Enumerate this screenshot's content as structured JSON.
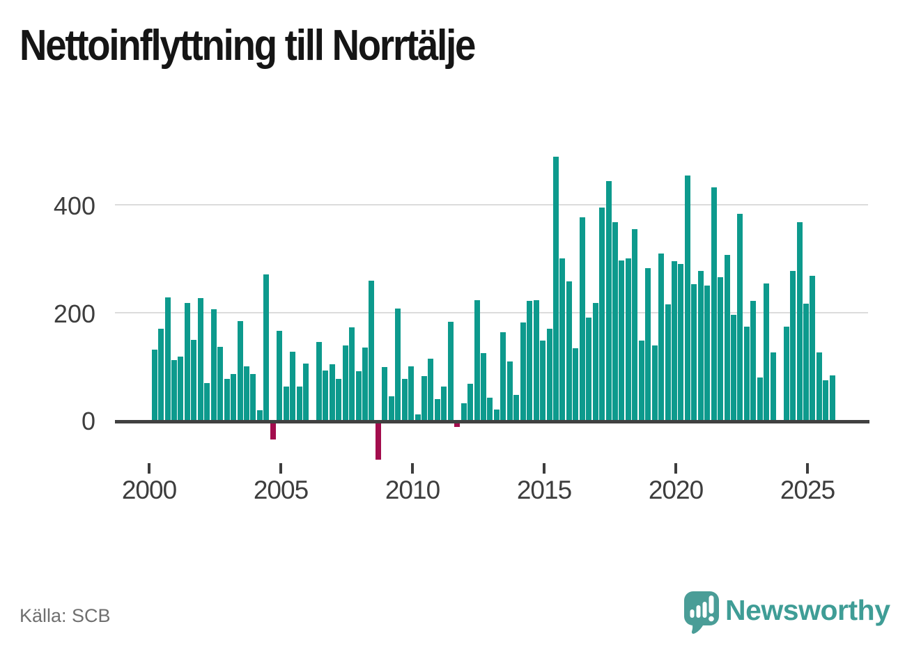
{
  "header": {
    "title": "Nettoinflyttning till Norrtälje"
  },
  "footer": {
    "source_label": "Källa: SCB",
    "brand": {
      "name": "Newsworthy",
      "logo_icon": "newsworthy-speech-bubble-barchart-icon"
    }
  },
  "chart_data": {
    "type": "bar",
    "title": "Nettoinflyttning till Norrtälje",
    "frequency": "quarterly",
    "x_start": "2000 Q1",
    "x_end": "2025 Q4",
    "values": [
      131,
      170,
      228,
      111,
      118,
      218,
      149,
      226,
      68,
      206,
      136,
      77,
      86,
      184,
      100,
      85,
      18,
      270,
      -30,
      166,
      62,
      127,
      62,
      105,
      0,
      145,
      92,
      103,
      77,
      138,
      172,
      91,
      135,
      259,
      -67,
      98,
      44,
      207,
      76,
      100,
      10,
      81,
      114,
      39,
      62,
      183,
      -7,
      31,
      67,
      223,
      124,
      42,
      20,
      163,
      109,
      46,
      181,
      222,
      223,
      148,
      169,
      489,
      300,
      257,
      133,
      377,
      190,
      217,
      395,
      444,
      368,
      296,
      300,
      355,
      148,
      282,
      139,
      309,
      215,
      295,
      290,
      455,
      253,
      277,
      250,
      433,
      265,
      307,
      195,
      383,
      173,
      222,
      79,
      254,
      125,
      0,
      173,
      277,
      368,
      216,
      268,
      125,
      74,
      83
    ],
    "yticks": [
      0,
      200,
      400
    ],
    "ytick_labels": [
      "0",
      "200",
      "400"
    ],
    "x_tick_years": [
      2000,
      2005,
      2010,
      2015,
      2020,
      2025
    ],
    "x_tick_labels": [
      "2000",
      "2005",
      "2010",
      "2015",
      "2020",
      "2025"
    ],
    "ylim": [
      -90,
      510
    ],
    "grid": "horizontal",
    "legend": "none",
    "colors": {
      "positive": "#0d9a8d",
      "negative": "#a30d4d"
    }
  }
}
